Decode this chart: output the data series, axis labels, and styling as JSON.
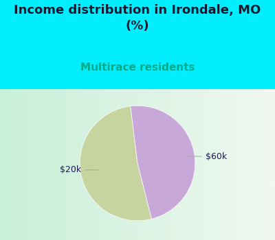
{
  "title": "Income distribution in Irondale, MO\n(%)",
  "subtitle": "Multirace residents",
  "title_color": "#1a1a2e",
  "subtitle_color": "#00aa88",
  "slices": [
    {
      "label": "$20k",
      "value": 52,
      "color": "#c8d4a0"
    },
    {
      "label": "$60k",
      "value": 48,
      "color": "#c8a8d8"
    }
  ],
  "bg_color": "#00eeff",
  "chart_area_color_left": "#c8f0d8",
  "chart_area_color_right": "#f0f8f0",
  "label_color": "#1a1a4e",
  "label_fontsize": 9,
  "title_fontsize": 13,
  "subtitle_fontsize": 11,
  "startangle": 97
}
